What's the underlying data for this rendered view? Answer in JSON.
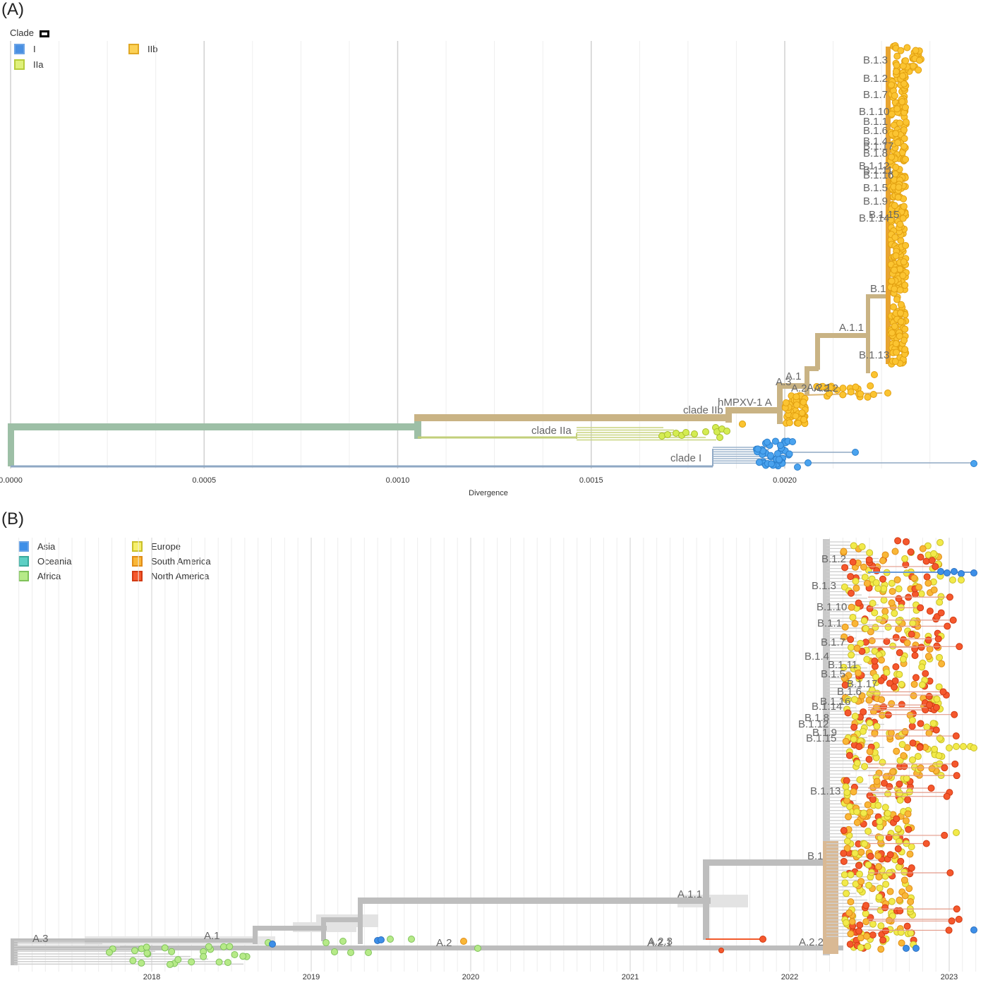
{
  "panels": {
    "a_tag": "(A)",
    "b_tag": "(B)"
  },
  "chart_data": [
    {
      "type": "phylogenetic-tree",
      "panel": "(A)",
      "xlabel": "Divergence",
      "xlim": [
        0.0,
        0.0025
      ],
      "ticks": [
        "0.0000",
        "0.0005",
        "0.0010",
        "0.0015",
        "0.0020"
      ],
      "tick_values": [
        0.0,
        0.0005,
        0.001,
        0.0015,
        0.002
      ],
      "grid": true,
      "legend": {
        "title": "Clade",
        "placement": "top-left",
        "items": [
          {
            "label": "I",
            "color": "#4a90e2"
          },
          {
            "label": "IIa",
            "color": "#c5e14a"
          },
          {
            "label": "IIb",
            "color": "#f8c035"
          }
        ]
      },
      "clade_colors": {
        "I": "#4a90e2",
        "IIa": "#c5e14a",
        "IIb": "#f8c035",
        "root": "#9dbfa6",
        "stem": "#c9b384"
      },
      "node_labels": [
        "B.1.3",
        "B.1.2",
        "B.1.7",
        "B.1.10",
        "B.1.1",
        "B.1.6",
        "B.1.4",
        "B.1.17",
        "B.1.8",
        "B.1.12",
        "B.1.11",
        "B.1.16",
        "B.1.5",
        "B.1.9",
        "B.1.14",
        "B.1.15",
        "B.1",
        "A.1.1",
        "B.1.13",
        "A.1",
        "A.3",
        "A.2",
        "A.2.1",
        "A.2.2",
        "hMPXV-1 A",
        "clade IIb",
        "clade IIa",
        "clade I"
      ]
    },
    {
      "type": "phylogenetic-tree",
      "panel": "(B)",
      "xlabel": "",
      "x_ticks": [
        "2018",
        "2019",
        "2020",
        "2021",
        "2022",
        "2023"
      ],
      "tick_values": [
        2018,
        2019,
        2020,
        2021,
        2022,
        2023
      ],
      "grid": true,
      "legend": {
        "placement": "top-left",
        "items": [
          {
            "label": "Asia",
            "color": "#3d8fe8"
          },
          {
            "label": "Oceania",
            "color": "#5ccfc4"
          },
          {
            "label": "Africa",
            "color": "#a9e47a"
          },
          {
            "label": "Europe",
            "color": "#f2ea4a"
          },
          {
            "label": "South America",
            "color": "#f9b737"
          },
          {
            "label": "North America",
            "color": "#f5582d"
          }
        ]
      },
      "node_labels": [
        "B.1.2",
        "B.1.3",
        "B.1.10",
        "B.1.1",
        "B.1.7",
        "B.1.4",
        "B.1.11",
        "B.1.5",
        "B.1.17",
        "B.1.6",
        "B.1.16",
        "B.1.14",
        "B.1.8",
        "B.1.12",
        "B.1.9",
        "B.1.15",
        "B.1.13",
        "B.1",
        "A.1.1",
        "A.2.1",
        "A.2.3",
        "A.2.2",
        "A.2",
        "A.1",
        "A.3"
      ]
    }
  ]
}
